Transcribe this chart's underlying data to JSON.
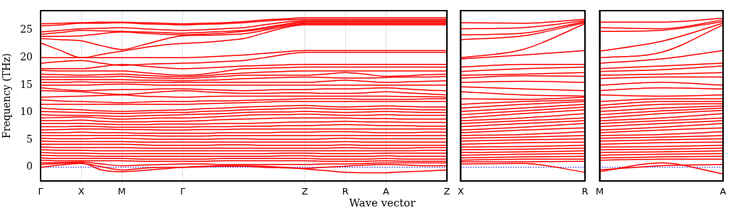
{
  "chart_data": [
    {
      "type": "line",
      "xlabel": "Wave vector",
      "ylabel": "Frequency (THz)",
      "grid": "x",
      "line_style": "solid",
      "categories": [
        "Γ",
        null,
        "X",
        null,
        "M",
        null,
        null,
        "Γ",
        null,
        null,
        null,
        null,
        null,
        "Z",
        null,
        "R",
        null,
        "A",
        null,
        null,
        "Z"
      ],
      "ylim": [
        -2.5,
        28.6
      ],
      "yticks": [
        0,
        5,
        10,
        15,
        20,
        25
      ],
      "ref_lines": [
        {
          "axis": "y",
          "value": 0,
          "color": "#0000ff",
          "line_style": "dotted"
        }
      ],
      "series": [
        {
          "color": "#ff0000",
          "values": [
            26.2,
            26.3,
            26.4,
            26.5,
            26.5,
            26.4,
            26.3,
            26.2,
            26.3,
            26.4,
            26.6,
            26.9,
            27.1,
            27.3,
            27.3,
            27.3,
            27.3,
            27.3,
            27.3,
            27.3,
            27.3
          ]
        },
        {
          "color": "#ff0000",
          "values": [
            25.8,
            26.0,
            26.3,
            26.3,
            26.4,
            26.2,
            26.1,
            26.0,
            26.1,
            26.2,
            26.4,
            26.7,
            26.9,
            27.0,
            27.0,
            27.0,
            27.0,
            27.0,
            27.0,
            27.0,
            27.0
          ]
        },
        {
          "color": "#ff0000",
          "values": [
            24.7,
            25.0,
            25.3,
            25.4,
            25.5,
            25.3,
            25.1,
            25.0,
            25.1,
            25.3,
            25.5,
            26.0,
            26.5,
            26.8,
            26.8,
            26.8,
            26.8,
            26.8,
            26.8,
            26.8,
            26.8
          ]
        },
        {
          "color": "#ff0000",
          "values": [
            24.3,
            24.6,
            25.0,
            24.9,
            24.8,
            24.7,
            24.6,
            24.5,
            24.6,
            24.8,
            25.0,
            25.5,
            26.1,
            26.6,
            26.6,
            26.6,
            26.6,
            26.6,
            26.6,
            26.6,
            26.6
          ]
        },
        {
          "color": "#ff0000",
          "values": [
            23.9,
            23.9,
            24.0,
            24.4,
            24.7,
            24.5,
            24.3,
            24.2,
            24.3,
            24.5,
            24.8,
            25.3,
            25.9,
            26.4,
            26.4,
            26.4,
            26.4,
            26.4,
            26.4,
            26.4,
            26.4
          ]
        },
        {
          "color": "#ff0000",
          "values": [
            23.5,
            23.3,
            23.1,
            22.2,
            21.5,
            22.3,
            23.3,
            24.0,
            24.1,
            24.2,
            24.4,
            25.0,
            25.7,
            26.2,
            26.2,
            26.2,
            26.2,
            26.2,
            26.2,
            26.2,
            26.2
          ]
        },
        {
          "color": "#ff0000",
          "values": [
            22.7,
            21.3,
            20.0,
            20.6,
            21.2,
            21.8,
            22.3,
            22.6,
            22.8,
            23.1,
            23.5,
            24.5,
            25.5,
            26.0,
            26.0,
            26.0,
            26.0,
            26.0,
            26.0,
            26.0,
            26.0
          ]
        },
        {
          "color": "#ff0000",
          "values": [
            20.0,
            20.0,
            20.0,
            20.0,
            20.0,
            20.0,
            20.0,
            20.0,
            20.1,
            20.3,
            20.5,
            20.8,
            21.1,
            21.3,
            21.3,
            21.3,
            21.3,
            21.3,
            21.3,
            21.3,
            21.3
          ]
        },
        {
          "color": "#ff0000",
          "values": [
            19.0,
            19.3,
            19.5,
            19.0,
            18.6,
            18.8,
            18.9,
            19.0,
            19.1,
            19.3,
            19.5,
            20.0,
            20.6,
            21.0,
            21.0,
            21.0,
            21.0,
            21.0,
            21.0,
            21.0,
            21.0
          ]
        },
        {
          "color": "#ff0000",
          "values": [
            18.0,
            18.0,
            18.0,
            18.4,
            18.8,
            18.5,
            18.2,
            18.0,
            18.1,
            18.3,
            18.5,
            18.6,
            18.7,
            18.8,
            18.8,
            18.8,
            18.8,
            18.8,
            18.8,
            18.8,
            18.8
          ]
        },
        {
          "color": "#ff0000",
          "values": [
            17.7,
            17.6,
            17.6,
            17.6,
            17.6,
            17.3,
            17.0,
            16.8,
            17.0,
            17.5,
            18.0,
            18.1,
            18.2,
            18.3,
            18.3,
            18.3,
            18.3,
            18.3,
            18.3,
            18.3,
            18.3
          ]
        },
        {
          "color": "#ff0000",
          "values": [
            17.0,
            16.9,
            16.8,
            16.9,
            17.0,
            16.8,
            16.6,
            16.5,
            16.7,
            17.0,
            17.2,
            17.4,
            17.5,
            17.6,
            17.6,
            17.6,
            17.6,
            17.6,
            17.6,
            17.6,
            17.6
          ]
        },
        {
          "color": "#ff0000",
          "values": [
            16.5,
            16.5,
            16.5,
            16.5,
            16.6,
            16.4,
            16.3,
            16.2,
            16.4,
            16.6,
            16.8,
            16.8,
            16.8,
            16.8,
            17.0,
            17.3,
            17.0,
            16.6,
            16.7,
            16.9,
            17.0
          ]
        },
        {
          "color": "#ff0000",
          "values": [
            16.0,
            16.0,
            16.0,
            16.0,
            16.0,
            15.9,
            15.9,
            15.8,
            15.9,
            16.0,
            16.2,
            16.3,
            16.4,
            16.5,
            16.4,
            16.3,
            16.3,
            16.4,
            16.5,
            16.5,
            16.6
          ]
        },
        {
          "color": "#ff0000",
          "values": [
            15.5,
            15.5,
            15.6,
            15.5,
            15.5,
            15.5,
            15.5,
            15.5,
            15.5,
            15.5,
            15.5,
            15.5,
            15.5,
            15.5,
            15.7,
            15.9,
            15.7,
            15.5,
            15.6,
            15.7,
            15.8
          ]
        },
        {
          "color": "#ff0000",
          "values": [
            15.0,
            15.0,
            15.0,
            15.1,
            15.2,
            15.1,
            15.0,
            15.0,
            15.0,
            15.0,
            15.0,
            15.0,
            15.0,
            15.0,
            15.0,
            15.0,
            15.0,
            15.0,
            15.0,
            15.0,
            15.0
          ]
        },
        {
          "color": "#ff0000",
          "values": [
            14.5,
            14.2,
            14.0,
            14.1,
            14.2,
            14.2,
            14.3,
            14.3,
            14.2,
            14.1,
            14.0,
            14.1,
            14.2,
            14.2,
            14.3,
            14.3,
            14.4,
            14.5,
            14.3,
            14.1,
            14.0
          ]
        },
        {
          "color": "#ff0000",
          "values": [
            14.0,
            13.9,
            13.8,
            13.5,
            13.3,
            13.5,
            13.8,
            14.0,
            13.8,
            13.6,
            13.5,
            13.5,
            13.6,
            13.6,
            13.5,
            13.5,
            13.6,
            13.8,
            13.6,
            13.4,
            13.2
          ]
        },
        {
          "color": "#ff0000",
          "values": [
            12.8,
            12.9,
            13.0,
            13.1,
            13.2,
            13.0,
            12.9,
            12.8,
            12.9,
            13.0,
            13.0,
            13.0,
            13.0,
            13.0,
            13.0,
            13.0,
            13.0,
            13.0,
            12.9,
            12.9,
            12.8
          ]
        },
        {
          "color": "#ff0000",
          "values": [
            12.3,
            12.1,
            12.0,
            11.9,
            11.8,
            11.9,
            12.0,
            12.0,
            12.1,
            12.1,
            12.2,
            12.3,
            12.4,
            12.5,
            12.5,
            12.5,
            12.4,
            12.4,
            12.4,
            12.5,
            12.5
          ]
        },
        {
          "color": "#ff0000",
          "values": [
            11.5,
            11.5,
            11.5,
            11.5,
            11.5,
            11.5,
            11.5,
            11.5,
            11.6,
            11.7,
            11.8,
            11.9,
            12.0,
            12.0,
            12.0,
            12.0,
            12.0,
            12.0,
            12.0,
            12.0,
            12.0
          ]
        },
        {
          "color": "#ff0000",
          "values": [
            10.8,
            10.6,
            10.5,
            10.3,
            10.2,
            10.3,
            10.4,
            10.5,
            10.7,
            10.8,
            11.0,
            11.1,
            11.2,
            11.3,
            11.1,
            11.0,
            11.1,
            11.2,
            11.1,
            11.0,
            11.0
          ]
        },
        {
          "color": "#ff0000",
          "values": [
            10.2,
            10.1,
            10.0,
            9.9,
            9.8,
            9.9,
            10.0,
            10.0,
            10.2,
            10.3,
            10.5,
            10.6,
            10.7,
            10.8,
            10.7,
            10.6,
            10.6,
            10.7,
            10.6,
            10.5,
            10.5
          ]
        },
        {
          "color": "#ff0000",
          "values": [
            9.6,
            9.5,
            9.5,
            9.4,
            9.3,
            9.4,
            9.5,
            9.6,
            9.7,
            9.8,
            10.0,
            10.1,
            10.1,
            10.2,
            10.1,
            10.0,
            10.1,
            10.2,
            10.1,
            10.0,
            10.0
          ]
        },
        {
          "color": "#ff0000",
          "values": [
            9.0,
            9.1,
            9.2,
            9.0,
            8.8,
            8.9,
            9.0,
            9.0,
            9.1,
            9.3,
            9.5,
            9.6,
            9.6,
            9.7,
            9.6,
            9.5,
            9.5,
            9.6,
            9.5,
            9.5,
            9.5
          ]
        },
        {
          "color": "#ff0000",
          "values": [
            8.5,
            8.5,
            8.6,
            8.4,
            8.3,
            8.3,
            8.4,
            8.4,
            8.5,
            8.7,
            8.8,
            8.9,
            9.0,
            9.0,
            9.0,
            9.0,
            8.9,
            8.9,
            8.8,
            8.8,
            8.8
          ]
        },
        {
          "color": "#ff0000",
          "values": [
            8.0,
            8.0,
            8.0,
            7.9,
            7.8,
            7.8,
            7.9,
            7.9,
            7.9,
            8.0,
            8.0,
            8.1,
            8.2,
            8.3,
            8.3,
            8.4,
            8.3,
            8.3,
            8.2,
            8.2,
            8.2
          ]
        },
        {
          "color": "#ff0000",
          "values": [
            7.4,
            7.4,
            7.5,
            7.4,
            7.3,
            7.3,
            7.3,
            7.3,
            7.4,
            7.4,
            7.5,
            7.5,
            7.6,
            7.6,
            7.7,
            7.8,
            7.7,
            7.6,
            7.6,
            7.5,
            7.5
          ]
        },
        {
          "color": "#ff0000",
          "values": [
            6.8,
            6.9,
            7.0,
            7.0,
            6.9,
            6.9,
            6.8,
            6.8,
            6.9,
            6.9,
            7.0,
            7.0,
            7.0,
            7.0,
            7.0,
            7.0,
            7.0,
            7.0,
            7.0,
            7.0,
            7.0
          ]
        },
        {
          "color": "#ff0000",
          "values": [
            6.3,
            6.3,
            6.4,
            6.3,
            6.3,
            6.2,
            6.2,
            6.2,
            6.2,
            6.3,
            6.3,
            6.3,
            6.4,
            6.4,
            6.5,
            6.5,
            6.4,
            6.3,
            6.3,
            6.4,
            6.4
          ]
        },
        {
          "color": "#ff0000",
          "values": [
            5.8,
            5.8,
            5.8,
            5.8,
            5.8,
            5.8,
            5.7,
            5.7,
            5.7,
            5.8,
            5.8,
            5.8,
            5.8,
            5.8,
            5.8,
            5.8,
            5.8,
            5.8,
            5.8,
            5.8,
            5.8
          ]
        },
        {
          "color": "#ff0000",
          "values": [
            5.3,
            5.2,
            5.2,
            5.3,
            5.3,
            5.2,
            5.1,
            5.1,
            5.1,
            5.2,
            5.2,
            5.1,
            5.1,
            5.1,
            5.2,
            5.3,
            5.2,
            5.2,
            5.2,
            5.2,
            5.2
          ]
        },
        {
          "color": "#ff0000",
          "values": [
            4.8,
            4.7,
            4.7,
            4.7,
            4.7,
            4.6,
            4.6,
            4.6,
            4.6,
            4.6,
            4.6,
            4.6,
            4.6,
            4.6,
            4.6,
            4.7,
            4.6,
            4.6,
            4.6,
            4.6,
            4.6
          ]
        },
        {
          "color": "#ff0000",
          "values": [
            4.2,
            4.2,
            4.2,
            4.2,
            4.2,
            4.1,
            4.0,
            4.0,
            4.0,
            4.1,
            4.1,
            4.0,
            4.0,
            4.0,
            4.0,
            4.1,
            4.0,
            4.0,
            4.0,
            4.0,
            4.0
          ]
        },
        {
          "color": "#ff0000",
          "values": [
            3.7,
            3.6,
            3.6,
            3.6,
            3.6,
            3.5,
            3.5,
            3.5,
            3.5,
            3.5,
            3.5,
            3.5,
            3.5,
            3.5,
            3.5,
            3.6,
            3.5,
            3.5,
            3.5,
            3.6,
            3.6
          ]
        },
        {
          "color": "#ff0000",
          "values": [
            3.2,
            3.1,
            3.1,
            3.0,
            3.0,
            3.0,
            3.0,
            3.0,
            3.0,
            3.0,
            3.0,
            3.0,
            3.0,
            3.0,
            3.0,
            3.0,
            3.0,
            3.0,
            3.0,
            3.1,
            3.1
          ]
        },
        {
          "color": "#ff0000",
          "values": [
            2.7,
            2.6,
            2.6,
            2.5,
            2.5,
            2.5,
            2.5,
            2.5,
            2.5,
            2.5,
            2.5,
            2.5,
            2.6,
            2.6,
            2.5,
            2.5,
            2.5,
            2.6,
            2.6,
            2.6,
            2.6
          ]
        },
        {
          "color": "#ff0000",
          "values": [
            2.2,
            2.1,
            2.1,
            2.0,
            2.0,
            2.0,
            2.0,
            2.0,
            2.0,
            2.0,
            2.0,
            2.0,
            2.1,
            2.1,
            2.0,
            2.0,
            2.0,
            2.1,
            2.0,
            2.0,
            2.0
          ]
        },
        {
          "color": "#ff0000",
          "values": [
            1.7,
            1.6,
            1.6,
            1.6,
            1.6,
            1.5,
            1.5,
            1.5,
            1.5,
            1.6,
            1.6,
            1.6,
            1.6,
            1.6,
            1.5,
            1.5,
            1.5,
            1.6,
            1.5,
            1.5,
            1.5
          ]
        },
        {
          "color": "#ff0000",
          "values": [
            1.3,
            1.2,
            1.2,
            1.2,
            1.2,
            1.1,
            1.1,
            1.1,
            1.1,
            1.2,
            1.2,
            1.2,
            1.2,
            1.2,
            1.1,
            1.1,
            1.1,
            1.2,
            1.1,
            1.1,
            1.1
          ]
        },
        {
          "color": "#ff0000",
          "values": [
            0.8,
            0.9,
            1.0,
            0.6,
            0.3,
            0.4,
            0.5,
            0.6,
            0.6,
            0.5,
            0.5,
            0.5,
            0.5,
            0.5,
            0.6,
            0.6,
            0.7,
            0.8,
            0.8,
            0.8,
            0.8
          ]
        },
        {
          "color": "#ff0000",
          "values": [
            0.0,
            0.4,
            0.7,
            0.1,
            -0.5,
            -0.2,
            0.0,
            0.0,
            0.1,
            0.2,
            0.2,
            0.0,
            -0.1,
            -0.2,
            0.0,
            0.2,
            0.4,
            0.5,
            0.4,
            0.3,
            0.3
          ]
        },
        {
          "color": "#ff0000",
          "values": [
            0.5,
            0.7,
            0.8,
            -0.5,
            -0.8,
            -0.6,
            -0.3,
            0.0,
            0.2,
            0.3,
            0.3,
            0.2,
            0.0,
            -0.3,
            -0.6,
            -0.9,
            -1.0,
            -1.0,
            -0.8,
            -0.7,
            -0.5
          ]
        }
      ]
    },
    {
      "type": "line",
      "line_style": "solid",
      "tick_labels": "x",
      "categories": [
        "X",
        null,
        "R"
      ],
      "ylim": [
        -2.5,
        28.6
      ],
      "yticks": [
        0,
        5,
        10,
        15,
        20,
        25
      ],
      "ref_lines": [
        {
          "axis": "y",
          "value": 0,
          "color": "#0000ff",
          "line_style": "dotted"
        }
      ],
      "series": [
        {
          "color": "#ff0000",
          "values": [
            26.4,
            26.3,
            27.0
          ]
        },
        {
          "color": "#ff0000",
          "values": [
            25.3,
            25.5,
            26.8
          ]
        },
        {
          "color": "#ff0000",
          "values": [
            24.2,
            24.5,
            26.6
          ]
        },
        {
          "color": "#ff0000",
          "values": [
            23.3,
            24.0,
            26.4
          ]
        },
        {
          "color": "#ff0000",
          "values": [
            20.0,
            21.5,
            26.2
          ]
        },
        {
          "color": "#ff0000",
          "values": [
            19.8,
            20.5,
            21.3
          ]
        },
        {
          "color": "#ff0000",
          "values": [
            18.3,
            18.8,
            18.8
          ]
        },
        {
          "color": "#ff0000",
          "values": [
            17.5,
            18.0,
            18.3
          ]
        },
        {
          "color": "#ff0000",
          "values": [
            16.8,
            17.0,
            17.3
          ]
        },
        {
          "color": "#ff0000",
          "values": [
            16.3,
            16.7,
            16.6
          ]
        },
        {
          "color": "#ff0000",
          "values": [
            15.5,
            15.7,
            15.5
          ]
        },
        {
          "color": "#ff0000",
          "values": [
            14.7,
            14.3,
            14.0
          ]
        },
        {
          "color": "#ff0000",
          "values": [
            13.8,
            13.2,
            13.0
          ]
        },
        {
          "color": "#ff0000",
          "values": [
            12.5,
            12.4,
            12.8
          ]
        },
        {
          "color": "#ff0000",
          "values": [
            11.5,
            12.0,
            12.3
          ]
        },
        {
          "color": "#ff0000",
          "values": [
            10.8,
            11.5,
            12.0
          ]
        },
        {
          "color": "#ff0000",
          "values": [
            10.2,
            10.8,
            11.5
          ]
        },
        {
          "color": "#ff0000",
          "values": [
            9.6,
            10.3,
            11.0
          ]
        },
        {
          "color": "#ff0000",
          "values": [
            9.0,
            9.8,
            10.5
          ]
        },
        {
          "color": "#ff0000",
          "values": [
            8.5,
            9.0,
            9.8
          ]
        },
        {
          "color": "#ff0000",
          "values": [
            8.0,
            8.5,
            9.0
          ]
        },
        {
          "color": "#ff0000",
          "values": [
            7.4,
            8.0,
            8.5
          ]
        },
        {
          "color": "#ff0000",
          "values": [
            6.8,
            7.3,
            8.0
          ]
        },
        {
          "color": "#ff0000",
          "values": [
            6.3,
            6.8,
            7.2
          ]
        },
        {
          "color": "#ff0000",
          "values": [
            5.8,
            6.0,
            6.5
          ]
        },
        {
          "color": "#ff0000",
          "values": [
            5.3,
            5.5,
            5.8
          ]
        },
        {
          "color": "#ff0000",
          "values": [
            4.8,
            5.0,
            5.2
          ]
        },
        {
          "color": "#ff0000",
          "values": [
            4.2,
            4.5,
            4.6
          ]
        },
        {
          "color": "#ff0000",
          "values": [
            3.7,
            3.8,
            4.0
          ]
        },
        {
          "color": "#ff0000",
          "values": [
            3.2,
            3.3,
            3.5
          ]
        },
        {
          "color": "#ff0000",
          "values": [
            2.7,
            2.8,
            3.0
          ]
        },
        {
          "color": "#ff0000",
          "values": [
            2.2,
            2.4,
            2.5
          ]
        },
        {
          "color": "#ff0000",
          "values": [
            1.7,
            1.9,
            2.0
          ]
        },
        {
          "color": "#ff0000",
          "values": [
            1.3,
            1.5,
            1.5
          ]
        },
        {
          "color": "#ff0000",
          "values": [
            1.0,
            1.0,
            1.1
          ]
        },
        {
          "color": "#ff0000",
          "values": [
            0.6,
            0.7,
            -0.9
          ]
        }
      ]
    },
    {
      "type": "line",
      "line_style": "solid",
      "tick_labels": "x",
      "categories": [
        "M",
        null,
        "A"
      ],
      "ylim": [
        -2.5,
        28.6
      ],
      "yticks": [
        0,
        5,
        10,
        15,
        20,
        25
      ],
      "ref_lines": [
        {
          "axis": "y",
          "value": 0,
          "color": "#0000ff",
          "line_style": "dotted"
        }
      ],
      "series": [
        {
          "color": "#ff0000",
          "values": [
            26.5,
            26.5,
            27.2
          ]
        },
        {
          "color": "#ff0000",
          "values": [
            25.5,
            25.3,
            26.9
          ]
        },
        {
          "color": "#ff0000",
          "values": [
            24.8,
            25.0,
            26.6
          ]
        },
        {
          "color": "#ff0000",
          "values": [
            21.2,
            23.0,
            26.3
          ]
        },
        {
          "color": "#ff0000",
          "values": [
            20.0,
            21.0,
            26.0
          ]
        },
        {
          "color": "#ff0000",
          "values": [
            19.0,
            19.8,
            21.3
          ]
        },
        {
          "color": "#ff0000",
          "values": [
            18.0,
            18.5,
            19.0
          ]
        },
        {
          "color": "#ff0000",
          "values": [
            17.5,
            17.8,
            18.5
          ]
        },
        {
          "color": "#ff0000",
          "values": [
            16.8,
            17.0,
            17.3
          ]
        },
        {
          "color": "#ff0000",
          "values": [
            16.2,
            16.5,
            16.5
          ]
        },
        {
          "color": "#ff0000",
          "values": [
            15.0,
            15.5,
            15.0
          ]
        },
        {
          "color": "#ff0000",
          "values": [
            14.0,
            14.5,
            14.3
          ]
        },
        {
          "color": "#ff0000",
          "values": [
            13.2,
            13.0,
            13.2
          ]
        },
        {
          "color": "#ff0000",
          "values": [
            12.0,
            12.5,
            12.5
          ]
        },
        {
          "color": "#ff0000",
          "values": [
            11.3,
            12.0,
            12.0
          ]
        },
        {
          "color": "#ff0000",
          "values": [
            10.8,
            11.5,
            11.6
          ]
        },
        {
          "color": "#ff0000",
          "values": [
            10.2,
            10.8,
            11.2
          ]
        },
        {
          "color": "#ff0000",
          "values": [
            9.6,
            10.3,
            10.8
          ]
        },
        {
          "color": "#ff0000",
          "values": [
            9.0,
            9.8,
            10.4
          ]
        },
        {
          "color": "#ff0000",
          "values": [
            8.5,
            9.0,
            9.8
          ]
        },
        {
          "color": "#ff0000",
          "values": [
            8.0,
            8.5,
            9.0
          ]
        },
        {
          "color": "#ff0000",
          "values": [
            7.4,
            8.0,
            8.5
          ]
        },
        {
          "color": "#ff0000",
          "values": [
            6.8,
            7.3,
            8.0
          ]
        },
        {
          "color": "#ff0000",
          "values": [
            6.3,
            6.8,
            7.2
          ]
        },
        {
          "color": "#ff0000",
          "values": [
            5.8,
            6.0,
            6.5
          ]
        },
        {
          "color": "#ff0000",
          "values": [
            5.3,
            5.5,
            5.8
          ]
        },
        {
          "color": "#ff0000",
          "values": [
            4.8,
            5.0,
            5.2
          ]
        },
        {
          "color": "#ff0000",
          "values": [
            4.2,
            4.5,
            4.6
          ]
        },
        {
          "color": "#ff0000",
          "values": [
            3.7,
            3.8,
            4.0
          ]
        },
        {
          "color": "#ff0000",
          "values": [
            3.2,
            3.3,
            3.5
          ]
        },
        {
          "color": "#ff0000",
          "values": [
            2.7,
            2.8,
            3.0
          ]
        },
        {
          "color": "#ff0000",
          "values": [
            2.2,
            2.4,
            2.5
          ]
        },
        {
          "color": "#ff0000",
          "values": [
            1.7,
            1.9,
            2.0
          ]
        },
        {
          "color": "#ff0000",
          "values": [
            1.3,
            1.5,
            1.5
          ]
        },
        {
          "color": "#ff0000",
          "values": [
            -0.5,
            0.3,
            0.5
          ]
        },
        {
          "color": "#ff0000",
          "values": [
            -0.8,
            0.8,
            -1.2
          ]
        }
      ]
    }
  ]
}
